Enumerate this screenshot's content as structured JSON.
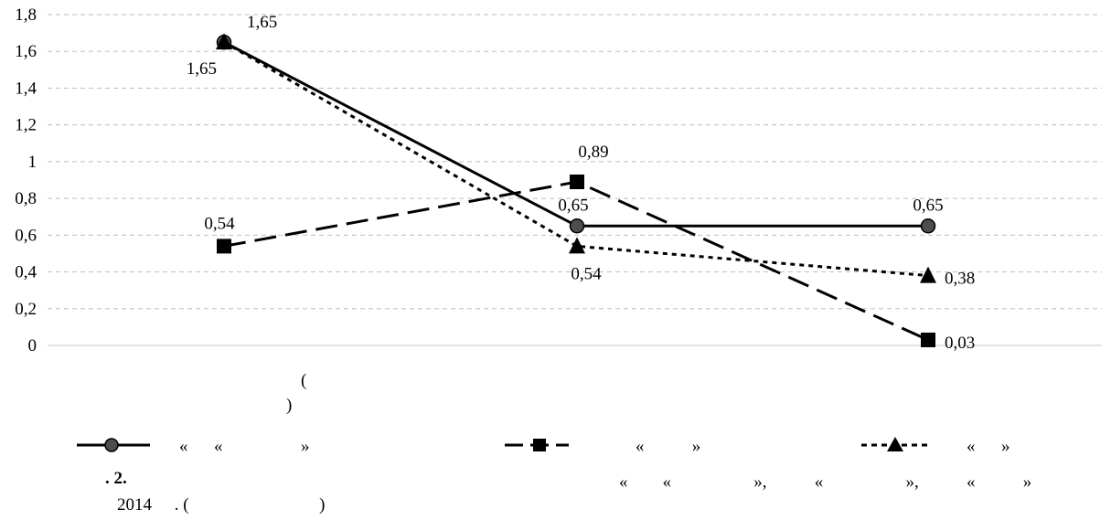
{
  "chart_data": {
    "type": "line",
    "categories": [
      "",
      "",
      ""
    ],
    "series": [
      {
        "values": [
          1.65,
          0.65,
          0.65
        ],
        "labels": [
          "1,65",
          "0,65",
          "0,65"
        ],
        "marker": "circle",
        "dash": "solid"
      },
      {
        "values": [
          0.54,
          0.89,
          0.03
        ],
        "labels": [
          "0,54",
          "0,89",
          "0,03"
        ],
        "marker": "square",
        "dash": "long-dash"
      },
      {
        "values": [
          1.65,
          0.54,
          0.38
        ],
        "labels": [
          "1,65",
          "0,54",
          "0,38"
        ],
        "marker": "triangle",
        "dash": "dotted"
      }
    ],
    "yticks": [
      "0",
      "0,2",
      "0,4",
      "0,6",
      "0,8",
      "1",
      "1,2",
      "1,4",
      "1,6",
      "1,8"
    ],
    "ylim": [
      0,
      1.8
    ],
    "grid": true,
    "legend_position": "bottom",
    "colors": {
      "line": "#000000",
      "marker_circle_fill": "#4d4d4d",
      "grid": "#bfbfbf"
    }
  },
  "axis_title": {
    "line1": "(",
    "line2": ")"
  },
  "legend": {
    "item1": "«      «                  »",
    "item2": "«           »",
    "item3": "«      »"
  },
  "caption": {
    "fig_number": ". 2.",
    "line1_right": "«        «                   »,           «                   »,           «           »",
    "year": "2014",
    "line2_rest": " . (                              )"
  }
}
